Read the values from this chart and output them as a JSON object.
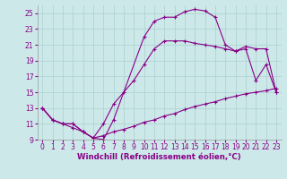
{
  "xlabel": "Windchill (Refroidissement éolien,°C)",
  "bg_color": "#cce8e8",
  "line_color": "#880088",
  "grid_color": "#aad0d0",
  "xlim": [
    -0.5,
    23.5
  ],
  "ylim": [
    9,
    26
  ],
  "xticks": [
    0,
    1,
    2,
    3,
    4,
    5,
    6,
    7,
    8,
    9,
    10,
    11,
    12,
    13,
    14,
    15,
    16,
    17,
    18,
    19,
    20,
    21,
    22,
    23
  ],
  "yticks": [
    9,
    11,
    13,
    15,
    17,
    19,
    21,
    23,
    25
  ],
  "line1_x": [
    0,
    1,
    2,
    3,
    4,
    5,
    6,
    7,
    8,
    9,
    10,
    11,
    12,
    13,
    14,
    15,
    16,
    17,
    18,
    19,
    20,
    21,
    22,
    23
  ],
  "line1_y": [
    13,
    11.5,
    11,
    10.5,
    10,
    9.2,
    9.5,
    10.0,
    10.3,
    10.7,
    11.2,
    11.5,
    12.0,
    12.3,
    12.8,
    13.2,
    13.5,
    13.8,
    14.2,
    14.5,
    14.8,
    15.0,
    15.2,
    15.5
  ],
  "line2_x": [
    0,
    1,
    2,
    3,
    4,
    5,
    6,
    7,
    8,
    9,
    10,
    11,
    12,
    13,
    14,
    15,
    16,
    17,
    18,
    19,
    20,
    21,
    22,
    23
  ],
  "line2_y": [
    13,
    11.5,
    11,
    11,
    10,
    9.2,
    11,
    13.5,
    15.0,
    16.5,
    18.5,
    20.5,
    21.5,
    21.5,
    21.5,
    21.2,
    21.0,
    20.8,
    20.5,
    20.2,
    20.8,
    20.5,
    20.5,
    15.0
  ],
  "line3_x": [
    0,
    1,
    2,
    3,
    4,
    5,
    6,
    7,
    10,
    11,
    12,
    13,
    14,
    15,
    16,
    17,
    18,
    19,
    20,
    21,
    22,
    23
  ],
  "line3_y": [
    13,
    11.5,
    11,
    11,
    10,
    9.2,
    9.0,
    11.5,
    22.0,
    24.0,
    24.5,
    24.5,
    25.2,
    25.5,
    25.3,
    24.5,
    21.0,
    20.2,
    20.5,
    16.5,
    18.5,
    15.0
  ],
  "tick_fontsize": 5.5,
  "xlabel_fontsize": 6.2
}
